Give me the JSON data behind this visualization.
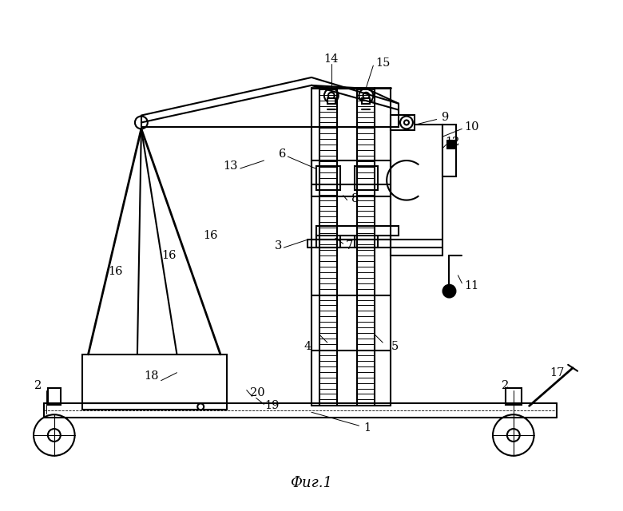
{
  "title": "Фиг.1",
  "bg_color": "#ffffff",
  "line_color": "#000000",
  "fig_width": 7.8,
  "fig_height": 6.4,
  "dpi": 100
}
